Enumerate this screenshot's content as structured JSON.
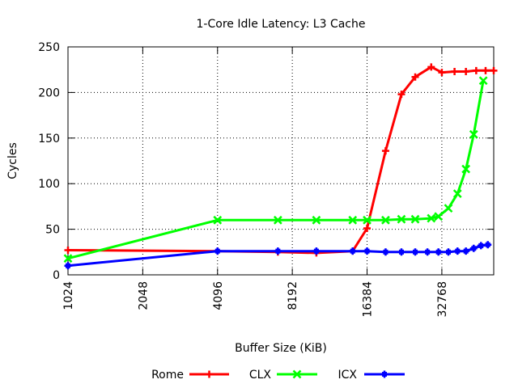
{
  "chart_data": {
    "type": "line",
    "title": "1-Core Idle Latency: L3 Cache",
    "xlabel": "Buffer Size (KiB)",
    "ylabel": "Cycles",
    "x_scale": "log2",
    "xlim": [
      1024,
      53000
    ],
    "ylim": [
      0,
      250
    ],
    "xticks": [
      1024,
      2048,
      4096,
      8192,
      16384,
      32768
    ],
    "yticks": [
      0,
      50,
      100,
      150,
      200,
      250
    ],
    "grid": true,
    "legend_position": "bottom",
    "series": [
      {
        "name": "Rome",
        "color": "#ff0000",
        "marker": "plus",
        "points": [
          [
            1024,
            27
          ],
          [
            4096,
            26
          ],
          [
            7168,
            25
          ],
          [
            10240,
            24
          ],
          [
            14336,
            26
          ],
          [
            16384,
            51
          ],
          [
            19456,
            136
          ],
          [
            22528,
            198
          ],
          [
            25600,
            217
          ],
          [
            29696,
            228
          ],
          [
            32768,
            222
          ],
          [
            36864,
            223
          ],
          [
            40960,
            223
          ],
          [
            45056,
            224
          ],
          [
            49152,
            224
          ],
          [
            53248,
            224
          ]
        ]
      },
      {
        "name": "CLX",
        "color": "#00ff00",
        "marker": "cross",
        "points": [
          [
            1024,
            18
          ],
          [
            4096,
            60
          ],
          [
            7168,
            60
          ],
          [
            10240,
            60
          ],
          [
            14336,
            60
          ],
          [
            16384,
            60
          ],
          [
            19456,
            60
          ],
          [
            22528,
            61
          ],
          [
            25600,
            61
          ],
          [
            29696,
            62
          ],
          [
            31744,
            64
          ],
          [
            34816,
            73
          ],
          [
            37888,
            89
          ],
          [
            40960,
            116
          ],
          [
            44032,
            154
          ],
          [
            48128,
            213
          ]
        ]
      },
      {
        "name": "ICX",
        "color": "#0000ff",
        "marker": "box",
        "points": [
          [
            1024,
            10
          ],
          [
            4096,
            26
          ],
          [
            7168,
            26
          ],
          [
            10240,
            26
          ],
          [
            14336,
            26
          ],
          [
            16384,
            26
          ],
          [
            19456,
            25
          ],
          [
            22528,
            25
          ],
          [
            25600,
            25
          ],
          [
            28672,
            25
          ],
          [
            31744,
            25
          ],
          [
            34816,
            25
          ],
          [
            37888,
            26
          ],
          [
            40960,
            26
          ],
          [
            44032,
            29
          ],
          [
            47104,
            32
          ],
          [
            50176,
            33
          ]
        ]
      }
    ]
  }
}
